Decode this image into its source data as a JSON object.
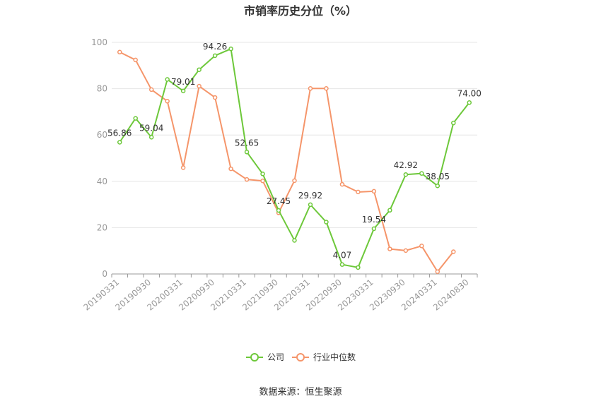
{
  "chart_data": {
    "type": "line",
    "title": "市销率历史分位（%）",
    "source": "数据来源：恒生聚源",
    "categories": [
      "20190331",
      "20190630",
      "20190930",
      "20191231",
      "20200331",
      "20200630",
      "20200930",
      "20201231",
      "20210331",
      "20210630",
      "20210930",
      "20211231",
      "20220331",
      "20220630",
      "20220930",
      "20221231",
      "20230331",
      "20230630",
      "20230930",
      "20231231",
      "20240331",
      "20240630",
      "20240830"
    ],
    "tick_labels": [
      "20190331",
      "20190930",
      "20200331",
      "20200930",
      "20210331",
      "20210930",
      "20220331",
      "20220930",
      "20230331",
      "20230930",
      "20240331",
      "20240830"
    ],
    "ylim": [
      0,
      100
    ],
    "yticks": [
      0,
      20,
      40,
      60,
      80,
      100
    ],
    "series": [
      {
        "name": "公司",
        "color": "#6dc83a",
        "values": [
          56.86,
          67.2,
          59.04,
          84.0,
          79.01,
          88.2,
          94.26,
          97.2,
          52.65,
          43.2,
          27.45,
          14.5,
          29.92,
          22.4,
          4.07,
          2.8,
          19.54,
          27.5,
          42.92,
          43.4,
          38.05,
          65.2,
          74.0
        ],
        "labels": [
          "56.86",
          "",
          "59.04",
          "",
          "79.01",
          "",
          "94.26",
          "",
          "52.65",
          "",
          "27.45",
          "",
          "29.92",
          "",
          "4.07",
          "",
          "19.54",
          "",
          "42.92",
          "",
          "38.05",
          "",
          "74.00"
        ]
      },
      {
        "name": "行业中位数",
        "color": "#f5956a",
        "values": [
          95.8,
          92.4,
          79.6,
          74.6,
          45.9,
          81.1,
          76.2,
          45.4,
          40.8,
          40.2,
          26.4,
          40.3,
          80.1,
          80.1,
          38.7,
          35.4,
          35.7,
          10.8,
          10.1,
          12.1,
          1.0,
          9.6,
          null
        ]
      }
    ],
    "legend_position": "bottom"
  }
}
